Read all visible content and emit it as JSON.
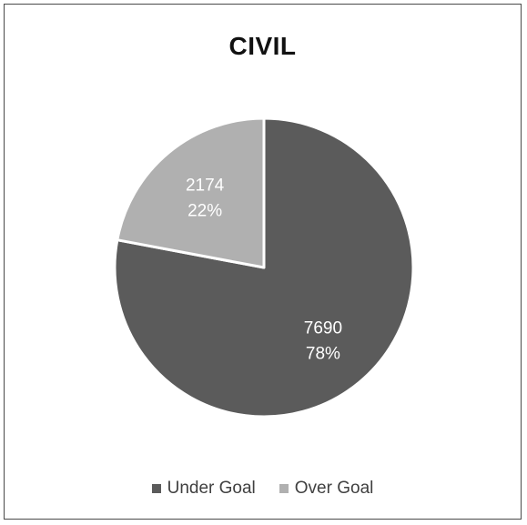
{
  "chart_data": {
    "type": "pie",
    "title": "CIVIL",
    "legend_position": "bottom",
    "slices": [
      {
        "name": "Under Goal",
        "value": 7690,
        "percent_label": "78%",
        "color": "#5b5b5b"
      },
      {
        "name": "Over Goal",
        "value": 2174,
        "percent_label": "22%",
        "color": "#b0b0b0"
      }
    ]
  }
}
